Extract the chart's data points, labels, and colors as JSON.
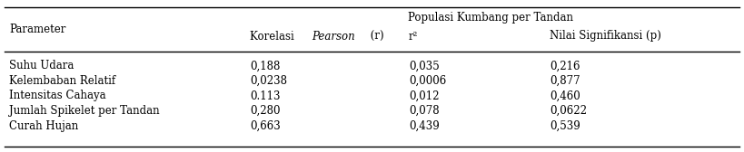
{
  "title_row": "Populasi Kumbang per Tandan",
  "col_header1": "Parameter",
  "col_header2_pre": "Korelasi ",
  "col_header2_italic": "Pearson",
  "col_header2_post": " (r)",
  "col_header3": "r²",
  "col_header4": "Nilai Signifikansi (p)",
  "rows": [
    [
      "Suhu Udara",
      "0,188",
      "0,035",
      "0,216"
    ],
    [
      "Kelembaban Relatif",
      "0,0238",
      "0,0006",
      "0,877"
    ],
    [
      "Intensitas Cahaya",
      "0.113",
      "0,012",
      "0,460"
    ],
    [
      "Jumlah Spikelet per Tandan",
      "0,280",
      "0,078",
      "0,0622"
    ],
    [
      "Curah Hujan",
      "0,663",
      "0,439",
      "0,539"
    ]
  ],
  "bg_color": "#ffffff",
  "text_color": "#000000",
  "font_size": 8.5,
  "fig_width": 8.19,
  "fig_height": 1.68,
  "dpi": 100
}
